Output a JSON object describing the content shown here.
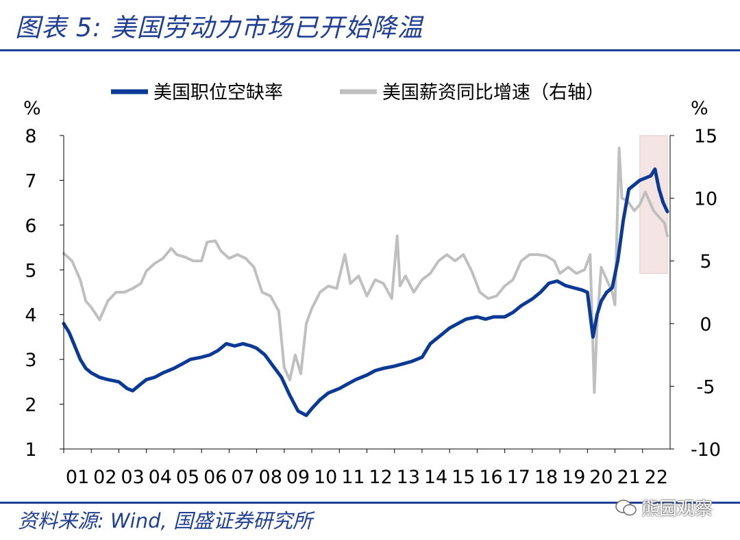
{
  "title": "图表 5:  美国劳动力市场已开始降温",
  "source": "资料来源:  Wind,  国盛证券研究所",
  "watermark": "熊园观察",
  "colors": {
    "accent": "#1f3f94",
    "series1": "#0a3a96",
    "series2": "#bfbfbf",
    "highlight": "#f4e4e4"
  },
  "chart_data": {
    "type": "line",
    "title": "",
    "left_axis": {
      "unit": "%",
      "range": [
        1,
        8
      ],
      "ticks": [
        "1",
        "2",
        "3",
        "4",
        "5",
        "6",
        "7",
        "8"
      ]
    },
    "right_axis": {
      "unit": "%",
      "range": [
        -10,
        15
      ],
      "ticks": [
        "-10",
        "-5",
        "0",
        "5",
        "10",
        "15"
      ]
    },
    "x_tick_labels": [
      "01",
      "02",
      "03",
      "04",
      "05",
      "06",
      "07",
      "08",
      "09",
      "10",
      "11",
      "12",
      "13",
      "14",
      "15",
      "16",
      "17",
      "18",
      "19",
      "20",
      "21",
      "22"
    ],
    "x_range": [
      2001.0,
      2023.0
    ],
    "legend": [
      "美国职位空缺率",
      "美国薪资同比增速（右轴）"
    ],
    "highlight_region": {
      "from": 2021.9,
      "to": 2022.9,
      "label": ""
    },
    "series": [
      {
        "name": "美国职位空缺率",
        "axis": "left",
        "x": [
          2001.0,
          2001.2,
          2001.4,
          2001.6,
          2001.8,
          2002.0,
          2002.3,
          2002.6,
          2003.0,
          2003.3,
          2003.5,
          2003.8,
          2004.0,
          2004.3,
          2004.6,
          2005.0,
          2005.3,
          2005.6,
          2006.0,
          2006.3,
          2006.6,
          2006.9,
          2007.2,
          2007.5,
          2007.8,
          2008.0,
          2008.3,
          2008.6,
          2008.9,
          2009.2,
          2009.5,
          2009.8,
          2010.0,
          2010.3,
          2010.6,
          2011.0,
          2011.3,
          2011.6,
          2012.0,
          2012.3,
          2012.6,
          2013.0,
          2013.3,
          2013.6,
          2014.0,
          2014.3,
          2014.6,
          2015.0,
          2015.3,
          2015.6,
          2016.0,
          2016.3,
          2016.6,
          2017.0,
          2017.3,
          2017.6,
          2018.0,
          2018.3,
          2018.6,
          2018.9,
          2019.2,
          2019.5,
          2019.8,
          2020.0,
          2020.2,
          2020.35,
          2020.5,
          2020.7,
          2020.9,
          2021.1,
          2021.3,
          2021.5,
          2021.7,
          2021.9,
          2022.1,
          2022.3,
          2022.45,
          2022.6,
          2022.75,
          2022.9
        ],
        "values": [
          3.8,
          3.6,
          3.3,
          3.0,
          2.8,
          2.7,
          2.6,
          2.55,
          2.5,
          2.35,
          2.3,
          2.45,
          2.55,
          2.6,
          2.7,
          2.8,
          2.9,
          3.0,
          3.05,
          3.1,
          3.2,
          3.35,
          3.3,
          3.35,
          3.3,
          3.25,
          3.1,
          2.85,
          2.6,
          2.2,
          1.85,
          1.75,
          1.9,
          2.1,
          2.25,
          2.35,
          2.45,
          2.55,
          2.65,
          2.75,
          2.8,
          2.85,
          2.9,
          2.95,
          3.05,
          3.35,
          3.5,
          3.7,
          3.8,
          3.9,
          3.95,
          3.9,
          3.95,
          3.95,
          4.05,
          4.2,
          4.35,
          4.5,
          4.7,
          4.75,
          4.65,
          4.6,
          4.55,
          4.5,
          3.5,
          4.0,
          4.3,
          4.5,
          4.6,
          5.2,
          6.1,
          6.8,
          6.9,
          7.0,
          7.05,
          7.1,
          7.25,
          6.8,
          6.5,
          6.3
        ]
      },
      {
        "name": "美国薪资同比增速（右轴）",
        "axis": "right",
        "x": [
          2001.0,
          2001.3,
          2001.6,
          2001.8,
          2002.0,
          2002.3,
          2002.6,
          2002.9,
          2003.2,
          2003.5,
          2003.8,
          2004.0,
          2004.3,
          2004.6,
          2004.9,
          2005.1,
          2005.4,
          2005.7,
          2006.0,
          2006.2,
          2006.5,
          2006.7,
          2007.0,
          2007.3,
          2007.6,
          2007.9,
          2008.2,
          2008.5,
          2008.8,
          2009.0,
          2009.2,
          2009.4,
          2009.6,
          2009.8,
          2010.0,
          2010.3,
          2010.6,
          2010.9,
          2011.2,
          2011.4,
          2011.7,
          2012.0,
          2012.3,
          2012.6,
          2012.9,
          2013.1,
          2013.2,
          2013.4,
          2013.7,
          2014.0,
          2014.3,
          2014.6,
          2014.9,
          2015.2,
          2015.5,
          2015.8,
          2016.1,
          2016.4,
          2016.7,
          2017.0,
          2017.3,
          2017.6,
          2017.9,
          2018.2,
          2018.5,
          2018.8,
          2019.0,
          2019.3,
          2019.6,
          2019.9,
          2020.1,
          2020.25,
          2020.35,
          2020.5,
          2020.7,
          2020.9,
          2021.0,
          2021.15,
          2021.25,
          2021.45,
          2021.7,
          2021.9,
          2022.1,
          2022.4,
          2022.6,
          2022.8,
          2022.9
        ],
        "values": [
          5.6,
          5.0,
          3.5,
          1.8,
          1.3,
          0.3,
          1.8,
          2.5,
          2.5,
          2.8,
          3.2,
          4.2,
          4.8,
          5.2,
          6.0,
          5.5,
          5.3,
          5.0,
          5.0,
          6.5,
          6.6,
          5.8,
          5.2,
          5.5,
          5.2,
          4.5,
          2.5,
          2.2,
          1.0,
          -3.5,
          -4.5,
          -2.5,
          -4.0,
          0.0,
          1.2,
          2.5,
          3.0,
          2.8,
          5.5,
          3.2,
          3.8,
          2.2,
          3.5,
          3.2,
          2.0,
          7.0,
          3.0,
          3.8,
          2.5,
          3.5,
          4.0,
          5.0,
          5.5,
          5.0,
          5.5,
          4.2,
          2.5,
          2.0,
          2.2,
          3.0,
          3.5,
          5.0,
          5.5,
          5.5,
          5.4,
          5.0,
          4.0,
          4.5,
          4.0,
          4.3,
          5.5,
          -5.5,
          0.0,
          4.5,
          3.5,
          2.5,
          1.5,
          14.0,
          10.0,
          9.8,
          9.0,
          9.5,
          10.5,
          9.0,
          8.5,
          8.0,
          7.0
        ]
      }
    ]
  }
}
